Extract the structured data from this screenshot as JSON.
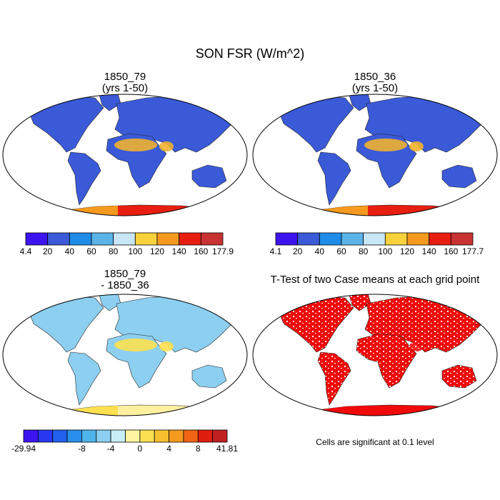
{
  "title": "SON FSR (W/m^2)",
  "panels": [
    {
      "title": [
        "1850_79",
        "(yrs 1-50)"
      ],
      "colorbar": {
        "colors": [
          "#3c14f0",
          "#3a5ad8",
          "#1e8ce8",
          "#5ab4e8",
          "#c8e6f4",
          "#f8d23c",
          "#f59a1e",
          "#e81e10",
          "#c83232"
        ],
        "labels": [
          "4.4",
          "20",
          "40",
          "60",
          "80",
          "100",
          "120",
          "140",
          "160",
          "177.9"
        ]
      }
    },
    {
      "title": [
        "1850_36",
        "(yrs 1-50)"
      ],
      "colorbar": {
        "colors": [
          "#3c14f0",
          "#3a5ad8",
          "#1e8ce8",
          "#5ab4e8",
          "#c8e6f4",
          "#f8d23c",
          "#f59a1e",
          "#e81e10",
          "#c83232"
        ],
        "labels": [
          "4.1",
          "20",
          "40",
          "60",
          "80",
          "100",
          "120",
          "140",
          "160",
          "177.7"
        ]
      }
    },
    {
      "title": [
        "1850_79",
        "- 1850_36"
      ],
      "colorbar": {
        "colors": [
          "#3c14f0",
          "#2838f0",
          "#2060ec",
          "#2890ec",
          "#50b4ec",
          "#8ccff0",
          "#c8eef8",
          "#fff5a0",
          "#fce050",
          "#f8c030",
          "#f59a1e",
          "#f06414",
          "#e01e10",
          "#c02020"
        ],
        "labels": [
          "-29.94",
          null,
          null,
          null,
          "-8",
          null,
          "-4",
          null,
          "0",
          null,
          "4",
          null,
          "8",
          null,
          "41.81"
        ]
      }
    },
    {
      "title": [
        "T-Test of two Case means at each grid point"
      ],
      "note": "Cells are significant at 0.1 level"
    }
  ]
}
